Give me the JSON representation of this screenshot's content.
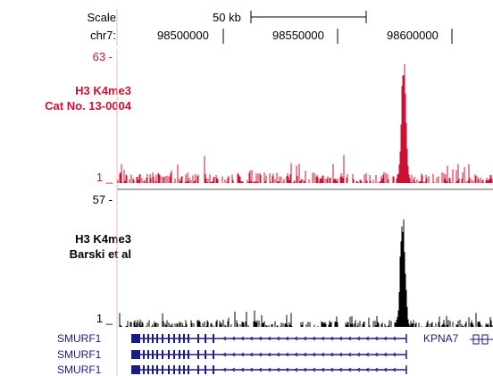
{
  "ruler": {
    "scale_label": "Scale",
    "chrom_label": "chr7:",
    "scale_bar_text": "50 kb",
    "positions": [
      "98500000",
      "98550000",
      "98600000"
    ]
  },
  "tracks": [
    {
      "label_line1": "H3 K4me3",
      "label_line2": "Cat No. 13-0004",
      "max": "63 -",
      "min": "1 _",
      "color": "#cc1133"
    },
    {
      "label_line1": "H3 K4me3",
      "label_line2": "Barski et al",
      "max": "57 -",
      "min": "1 _",
      "color": "#000000"
    }
  ],
  "genes": {
    "rows": [
      "SMURF1",
      "SMURF1",
      "SMURF1"
    ],
    "right_gene": "KPNA7",
    "color": "#1a1a8a"
  }
}
